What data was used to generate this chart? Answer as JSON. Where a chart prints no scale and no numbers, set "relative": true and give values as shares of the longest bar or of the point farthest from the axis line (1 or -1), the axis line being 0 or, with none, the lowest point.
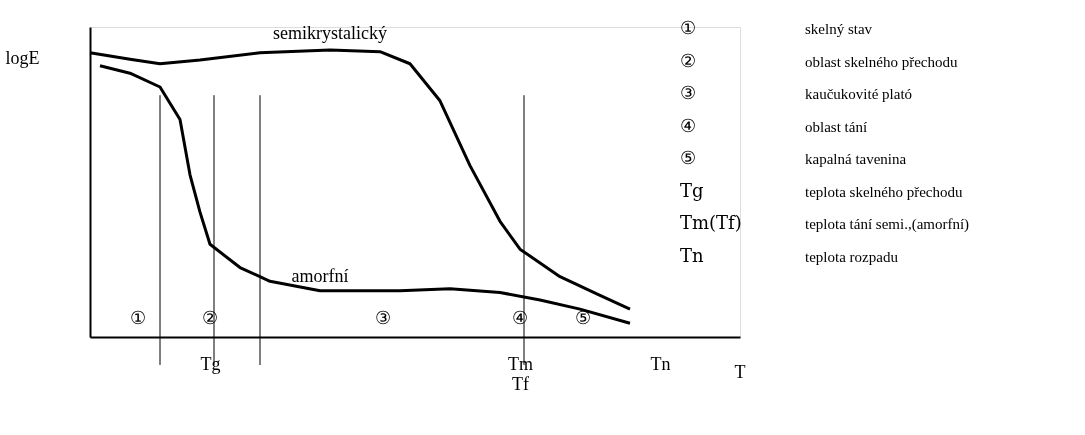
{
  "chart_data": {
    "type": "line",
    "relative": true,
    "ylabel": "logE",
    "xlabel": "T",
    "categories": [
      null,
      null,
      null,
      null,
      null,
      null,
      null,
      null,
      null,
      null,
      null,
      null,
      "Tg",
      null,
      null,
      null,
      null,
      null,
      null,
      null,
      null,
      null,
      null,
      null,
      null,
      null,
      null,
      null,
      null,
      null,
      null,
      null,
      null,
      null,
      null,
      null,
      null,
      null,
      null,
      null,
      null,
      null,
      null,
      "Tm\nTf",
      null,
      null,
      null,
      null,
      null,
      null,
      null,
      null,
      null,
      null,
      null,
      null,
      null,
      "Tn",
      null,
      null,
      null,
      null,
      null,
      null,
      null,
      null
    ],
    "grid": false,
    "legend": false,
    "marker": "none",
    "line_style": "solid",
    "series": [
      {
        "name": "semikrystalický",
        "color": "#000000",
        "values": [
          0.99,
          null,
          null,
          null,
          0.968,
          null,
          null,
          0.952,
          null,
          null,
          null,
          0.965,
          null,
          null,
          null,
          null,
          null,
          0.99,
          null,
          null,
          null,
          null,
          null,
          null,
          1,
          null,
          null,
          null,
          null,
          0.994,
          null,
          null,
          0.952,
          null,
          null,
          0.823,
          null,
          null,
          0.597,
          null,
          null,
          0.403,
          null,
          0.306,
          null,
          null,
          null,
          0.21,
          null,
          null,
          null,
          0.145,
          null,
          null,
          0.097,
          null,
          null,
          null,
          null,
          null,
          null,
          null,
          null,
          null,
          null,
          null
        ]
      },
      {
        "name": "amorfní",
        "color": "#000000",
        "values": [
          null,
          0.945,
          null,
          null,
          0.919,
          null,
          null,
          0.871,
          null,
          0.758,
          0.565,
          0.435,
          0.323,
          null,
          null,
          0.242,
          null,
          null,
          0.194,
          null,
          null,
          null,
          null,
          0.161,
          null,
          null,
          null,
          null,
          null,
          null,
          null,
          0.161,
          null,
          null,
          null,
          null,
          0.168,
          null,
          null,
          null,
          null,
          0.155,
          null,
          null,
          null,
          0.129,
          null,
          null,
          null,
          0.097,
          null,
          null,
          null,
          null,
          0.048,
          null,
          null,
          null,
          null,
          null,
          null,
          null,
          null,
          null,
          null,
          null
        ]
      }
    ],
    "annotations": [
      "①",
      "②",
      "③",
      "④",
      "⑤",
      "① skelný stav",
      "② oblast skelného přechodu",
      "③ kaučukovité plató",
      "④ oblast tání",
      "⑤ kapalná tavenina",
      "Tg teplota skelného přechodu",
      "Tm(Tf) teplota tání semi.,(amorfní)",
      "Tn teplota rozpadu"
    ]
  }
}
